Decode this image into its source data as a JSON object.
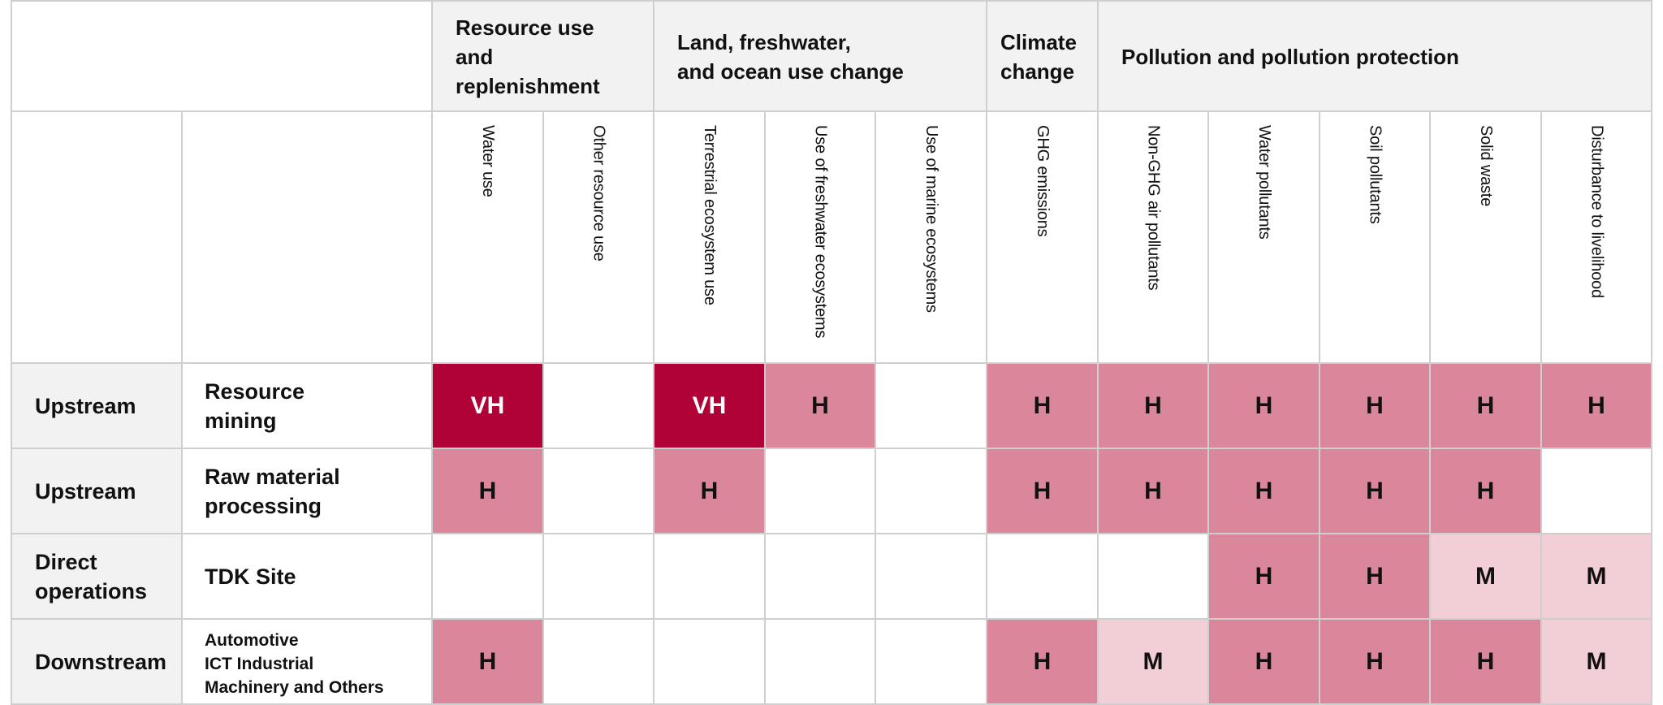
{
  "groups": [
    {
      "label": "Resource use\nand replenishment"
    },
    {
      "label": "Land, freshwater,\nand ocean use change"
    },
    {
      "label": "Climate\nchange"
    },
    {
      "label": "Pollution and pollution protection"
    }
  ],
  "columns": [
    "Water use",
    "Other resource use",
    "Terrestrial ecosystem use",
    "Use of freshwater ecosystems",
    "Use of marine ecosystems",
    "GHG emissions",
    "Non-GHG air pollutants",
    "Water pollutants",
    "Soil pollutants",
    "Solid waste",
    "Disturbance to livelihood"
  ],
  "rows": [
    {
      "stage": "Upstream",
      "process": "Resource\nmining",
      "values": [
        "VH",
        "",
        "VH",
        "H",
        "",
        "H",
        "H",
        "H",
        "H",
        "H",
        "H"
      ]
    },
    {
      "stage": "Upstream",
      "process": "Raw material\nprocessing",
      "values": [
        "H",
        "",
        "H",
        "",
        "",
        "H",
        "H",
        "H",
        "H",
        "H",
        ""
      ]
    },
    {
      "stage": "Direct\noperations",
      "process": "TDK Site",
      "values": [
        "",
        "",
        "",
        "",
        "",
        "",
        "",
        "H",
        "H",
        "M",
        "M"
      ]
    },
    {
      "stage": "Downstream",
      "process": "Automotive\nICT Industrial\nMachinery and Others",
      "values": [
        "H",
        "",
        "",
        "",
        "",
        "H",
        "M",
        "H",
        "H",
        "H",
        "M"
      ]
    }
  ],
  "colors": {
    "VH": "#b00236",
    "H": "#db879b",
    "M": "#f2ced7",
    "header_bg": "#f2f2f2",
    "border": "#cfcfcf"
  }
}
